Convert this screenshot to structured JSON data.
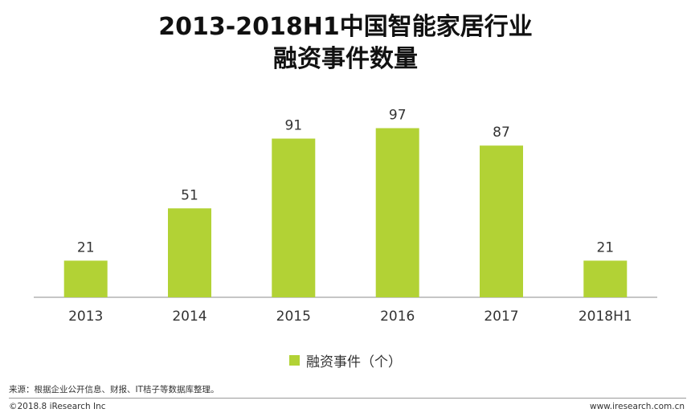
{
  "chart_data": {
    "type": "bar",
    "title_line1": "2013-2018H1中国智能家居行业",
    "title_line2": "融资事件数量",
    "categories": [
      "2013",
      "2014",
      "2015",
      "2016",
      "2017",
      "2018H1"
    ],
    "series": [
      {
        "name": "融资事件（个）",
        "values": [
          21,
          51,
          91,
          97,
          87,
          21
        ],
        "color": "#b2d235"
      }
    ],
    "ylim": [
      0,
      100
    ],
    "grid": false,
    "legend_position": "bottom",
    "data_labels": true
  },
  "footer": {
    "source": "来源：根据企业公开信息、财报、IT桔子等数据库整理。",
    "copyright": "©2018.8 iResearch Inc",
    "website": "www.iresearch.com.cn"
  }
}
